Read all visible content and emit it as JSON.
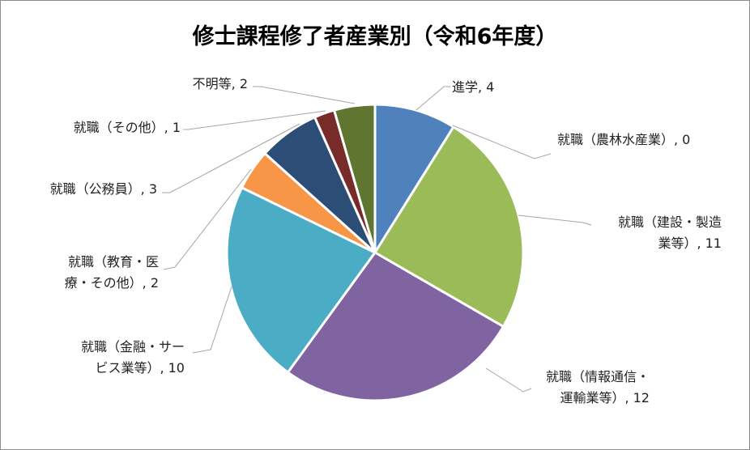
{
  "chart_data": {
    "type": "pie",
    "title": "修士課程修了者産業別（令和6年度）",
    "slices": [
      {
        "label": "進学",
        "value": 4,
        "color": "#4f81bd",
        "label_lines": [
          "進学, 4"
        ]
      },
      {
        "label": "就職（農林水産業）",
        "value": 0,
        "color": "#c0504d",
        "label_lines": [
          "就職（農林水産業）, 0"
        ]
      },
      {
        "label": "就職（建設・製造業等）",
        "value": 11,
        "color": "#9bbb59",
        "label_lines": [
          "就職（建設・製造",
          "業等）, 11"
        ]
      },
      {
        "label": "就職（情報通信・運輸業等）",
        "value": 12,
        "color": "#8064a2",
        "label_lines": [
          "就職（情報通信・",
          "運輸業等）, 12"
        ]
      },
      {
        "label": "就職（金融・サービス業等）",
        "value": 10,
        "color": "#4bacc6",
        "label_lines": [
          "就職（金融・サー",
          "ビス業等）, 10"
        ]
      },
      {
        "label": "就職（教育・医療・その他）",
        "value": 2,
        "color": "#f79646",
        "label_lines": [
          "就職（教育・医",
          "療・その他）, 2"
        ]
      },
      {
        "label": "就職（公務員）",
        "value": 3,
        "color": "#2c4d75",
        "label_lines": [
          "就職（公務員）, 3"
        ]
      },
      {
        "label": "就職（その他）",
        "value": 1,
        "color": "#772c2a",
        "label_lines": [
          "就職（その他）, 1"
        ]
      },
      {
        "label": "不明等",
        "value": 2,
        "color": "#5f7530",
        "label_lines": [
          "不明等, 2"
        ]
      }
    ],
    "start_angle_deg": 0,
    "direction": "clockwise",
    "legend": "none",
    "data_labels": "outside with leader lines"
  }
}
